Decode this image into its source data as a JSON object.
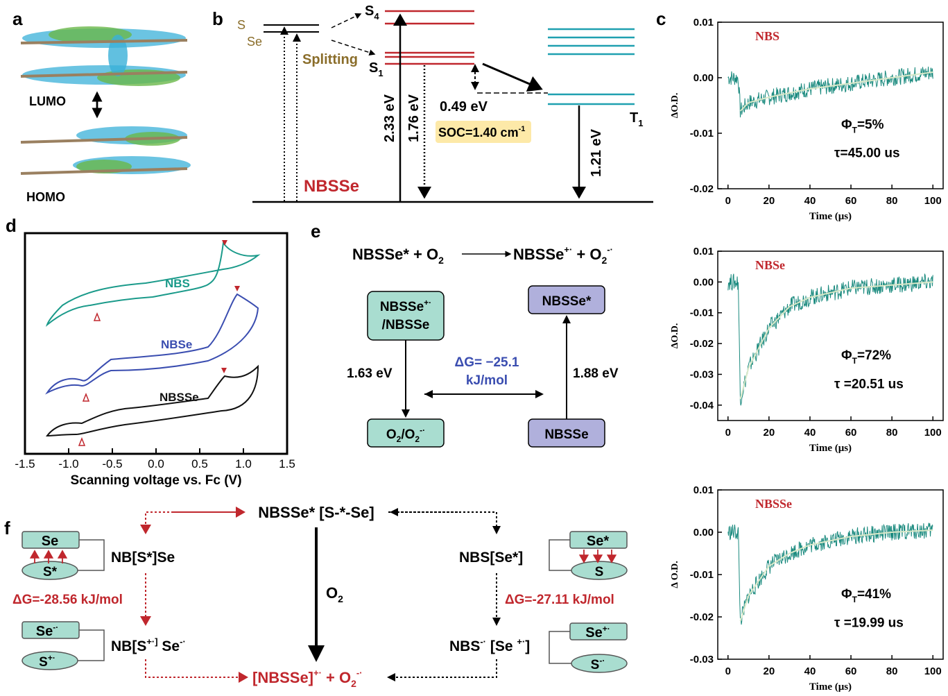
{
  "panel_letters": {
    "a": "a",
    "b": "b",
    "c": "c",
    "d": "d",
    "e": "e",
    "f": "f"
  },
  "panel_a": {
    "lumo": "LUMO",
    "homo": "HOMO"
  },
  "panel_b": {
    "s_label": "S",
    "se_label": "Se",
    "s4": "S",
    "s4_sub": "4",
    "s1": "S",
    "s1_sub": "1",
    "t1": "T",
    "t1_sub": "1",
    "splitting": "Splitting",
    "e_233": "2.33 eV",
    "e_176": "1.76 eV",
    "e_049": "0.49 eV",
    "e_121": "1.21 eV",
    "soc": "SOC=1.40 cm",
    "soc_sup": "-1",
    "compound": "NBSSe",
    "colors": {
      "singlet": "#c0272d",
      "triplet": "#1fa0b0",
      "soc_box": "#fde9a8",
      "label_brown": "#8a6d2a"
    }
  },
  "panel_c": {
    "color_trace": "#1a8a7e",
    "color_fit": "#d8e8c8",
    "xlabel": "Time (μs)",
    "plots": [
      {
        "name": "NBS",
        "ylabel": "ΔO.D.",
        "phi": "Φ",
        "phi_sub": "T",
        "phi_val": "=5%",
        "tau": "τ=45.00 us",
        "yticks": [
          "0.01",
          "0.00",
          "-0.01",
          "-0.02"
        ],
        "xticks": [
          "0",
          "20",
          "40",
          "60",
          "80",
          "100"
        ]
      },
      {
        "name": "NBSe",
        "ylabel": "ΔO.D.",
        "phi": "Φ",
        "phi_sub": "T",
        "phi_val": "=72%",
        "tau": "τ =20.51 us",
        "yticks": [
          "0.01",
          "0.00",
          "-0.01",
          "-0.02",
          "-0.03",
          "-0.04"
        ],
        "xticks": [
          "0",
          "20",
          "40",
          "60",
          "80",
          "100"
        ]
      },
      {
        "name": "NBSSe",
        "ylabel": "Δ O.D.",
        "phi": "Φ",
        "phi_sub": "T",
        "phi_val": "=41%",
        "tau": "τ =19.99 us",
        "yticks": [
          "0.01",
          "0.00",
          "-0.01",
          "-0.02",
          "-0.03"
        ],
        "xticks": [
          "0",
          "20",
          "40",
          "60",
          "80",
          "100"
        ]
      }
    ]
  },
  "chart_data": [
    {
      "type": "line",
      "title": "NBS",
      "xlabel": "Time (μs)",
      "ylabel": "ΔO.D.",
      "xlim": [
        -5,
        105
      ],
      "ylim": [
        -0.02,
        0.01
      ],
      "series": [
        {
          "x": [
            0,
            5,
            6,
            10,
            20,
            40,
            60,
            80,
            100
          ],
          "y": [
            0.0,
            0.0,
            -0.006,
            -0.0045,
            -0.0035,
            -0.002,
            -0.001,
            0.0,
            0.001
          ]
        }
      ],
      "annotations": [
        "ΦT=5%",
        "τ=45.00 us"
      ]
    },
    {
      "type": "line",
      "title": "NBSe",
      "xlabel": "Time (μs)",
      "ylabel": "ΔO.D.",
      "xlim": [
        -5,
        105
      ],
      "ylim": [
        -0.045,
        0.01
      ],
      "series": [
        {
          "x": [
            0,
            5,
            6,
            10,
            20,
            30,
            40,
            60,
            80,
            100
          ],
          "y": [
            0.0,
            0.0,
            -0.038,
            -0.028,
            -0.015,
            -0.008,
            -0.005,
            -0.002,
            -0.001,
            0.0
          ]
        }
      ],
      "annotations": [
        "ΦT=72%",
        "τ =20.51 us"
      ]
    },
    {
      "type": "line",
      "title": "NBSSe",
      "xlabel": "Time (μs)",
      "ylabel": "Δ O.D.",
      "xlim": [
        -5,
        105
      ],
      "ylim": [
        -0.03,
        0.01
      ],
      "series": [
        {
          "x": [
            0,
            5,
            6,
            10,
            20,
            30,
            40,
            60,
            80,
            100
          ],
          "y": [
            0.0,
            0.0,
            -0.021,
            -0.015,
            -0.008,
            -0.005,
            -0.003,
            -0.001,
            0.0,
            0.0005
          ]
        }
      ],
      "annotations": [
        "ΦT=41%",
        "τ =19.99 us"
      ]
    },
    {
      "type": "line",
      "title": "",
      "xlabel": "Scanning voltage vs. Fc (V)",
      "ylabel": "",
      "xlim": [
        -1.5,
        1.5
      ],
      "xticks": [
        "-1.5",
        "-1.0",
        "-0.5",
        "0.0",
        "0.5",
        "1.0",
        "1.5"
      ],
      "series": [
        {
          "name": "NBS"
        },
        {
          "name": "NBSe"
        },
        {
          "name": "NBSSe"
        }
      ]
    }
  ],
  "panel_d": {
    "xlabel": "Scanning voltage vs. Fc (V)",
    "xticks": [
      "-1.5",
      "-1.0",
      "-0.5",
      "0.0",
      "0.5",
      "1.0",
      "1.5"
    ],
    "labels": {
      "nbs": "NBS",
      "nbse": "NBSe",
      "nbsse": "NBSSe"
    },
    "colors": {
      "nbs": "#1a9a8a",
      "nbse": "#3a4db0",
      "nbsse": "#111111",
      "marker": "#c0272d"
    }
  },
  "panel_e": {
    "eq_left": "NBSSe* + O",
    "eq_left_sub": "2",
    "eq_right": "NBSSe",
    "eq_right_sup": "+·",
    "eq_right2": " + O",
    "eq_right2_sub": "2",
    "eq_right2_sup": "-·",
    "box_tl_1": "NBSSe",
    "box_tl_1_sup": "+·",
    "box_tl_2": "/NBSSe",
    "box_tr": "NBSSe*",
    "box_bl": "O",
    "box_bl_sub": "2",
    "box_bl_2": "/O",
    "box_bl_2_sub": "2",
    "box_bl_2_sup": "-·",
    "box_br": "NBSSe",
    "e_left": "1.63 eV",
    "e_right": "1.88 eV",
    "dg1": "ΔG= −25.1",
    "dg2": "kJ/mol",
    "colors": {
      "green_box": "#a9ddd0",
      "purple_box": "#b0b0dc",
      "dg": "#3a4db0"
    }
  },
  "panel_f": {
    "top": "NBSSe* [S-*-Se]",
    "nbsse_se": "NB[S*]Se",
    "nbs_se": "NBS[Se*]",
    "o2": "O",
    "o2_sub": "2",
    "dg_left": "ΔG=-28.56 kJ/mol",
    "dg_right": "ΔG=-27.11 kJ/mol",
    "bottom_left": "NB[S",
    "bottom_left_sup": "+·]",
    "bottom_left_2": " Se",
    "bottom_left_2_sup": "-·",
    "bottom_right": "NBS",
    "bottom_right_sup": "-·",
    "bottom_right_2": " [Se ",
    "bottom_right_2_sup": "+·",
    "bottom_right_3": "]",
    "product": "[NBSSe]",
    "product_sup": "+·",
    "product_2": " + O",
    "product_2_sub": "2",
    "product_2_sup": "-·",
    "diag": {
      "se": "Se",
      "s_star": "S*",
      "se_star": "Se*",
      "s": "S",
      "se_minus": "Se",
      "se_minus_sup": "-·",
      "s_plus": "S",
      "s_plus_sup": "+·",
      "se_plus": "Se",
      "se_plus_sup": "+·",
      "s_minus": "S",
      "s_minus_sup": "-·"
    },
    "colors": {
      "red": "#c0272d",
      "box": "#a9ddd0"
    }
  }
}
